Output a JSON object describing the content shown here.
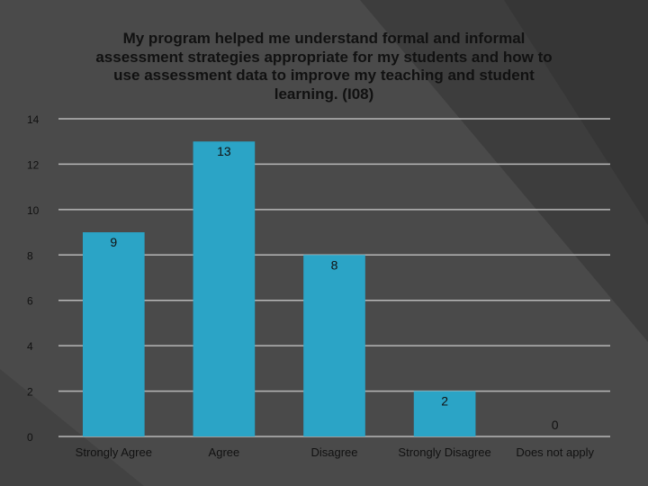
{
  "chart_data": {
    "type": "bar",
    "title": "My program helped me understand formal and informal assessment strategies appropriate for my students and how to use assessment data to improve my teaching and student learning. (I08)",
    "categories": [
      "Strongly Agree",
      "Agree",
      "Disagree",
      "Strongly Disagree",
      "Does not apply"
    ],
    "values": [
      9,
      13,
      8,
      2,
      0
    ],
    "data_labels": [
      "9",
      "13",
      "8",
      "2",
      "0"
    ],
    "ylim": [
      0,
      14
    ],
    "yticks": [
      "0",
      "2",
      "4",
      "6",
      "8",
      "10",
      "12",
      "14"
    ],
    "grid": true,
    "legend": "none",
    "xlabel": "",
    "ylabel": ""
  },
  "colors": {
    "background": "#4a4a4a",
    "bar": "#2ba4c6",
    "grid": "#b8b8b8",
    "text": "#111111",
    "decor_dark": "#3b3b3b"
  }
}
